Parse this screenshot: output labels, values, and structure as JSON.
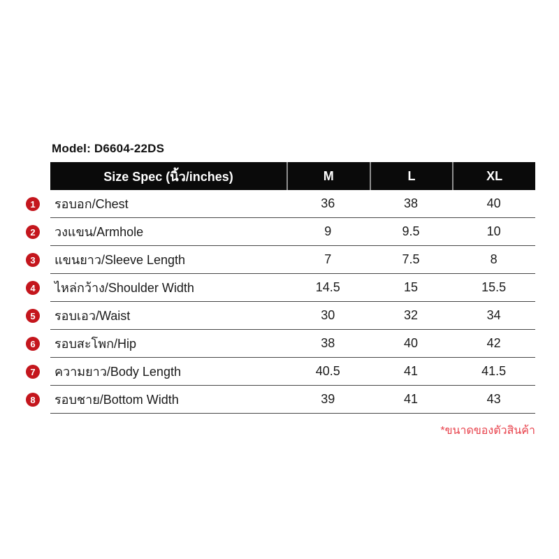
{
  "page": {
    "model_label": "Model: D6604-22DS",
    "footnote": "*ขนาดของตัวสินค้า"
  },
  "table": {
    "header": {
      "spec_label": "Size Spec (นิ้ว/inches)",
      "sizes": [
        "M",
        "L",
        "XL"
      ]
    },
    "rows": [
      {
        "num": "1",
        "label": "รอบอก/Chest",
        "values": [
          "36",
          "38",
          "40"
        ]
      },
      {
        "num": "2",
        "label": "วงแขน/Armhole",
        "values": [
          "9",
          "9.5",
          "10"
        ]
      },
      {
        "num": "3",
        "label": "แขนยาว/Sleeve Length",
        "values": [
          "7",
          "7.5",
          "8"
        ]
      },
      {
        "num": "4",
        "label": "ไหล่กว้าง/Shoulder Width",
        "values": [
          "14.5",
          "15",
          "15.5"
        ]
      },
      {
        "num": "5",
        "label": "รอบเอว/Waist",
        "values": [
          "30",
          "32",
          "34"
        ]
      },
      {
        "num": "6",
        "label": "รอบสะโพก/Hip",
        "values": [
          "38",
          "40",
          "42"
        ]
      },
      {
        "num": "7",
        "label": "ความยาว/Body Length",
        "values": [
          "40.5",
          "41",
          "41.5"
        ]
      },
      {
        "num": "8",
        "label": "รอบชาย/Bottom Width",
        "values": [
          "39",
          "41",
          "43"
        ]
      }
    ]
  },
  "colors": {
    "badge_red": "#c4161d",
    "note_red": "#e8414b",
    "header_bg": "#0a0a0a",
    "row_separator": "#454545"
  }
}
